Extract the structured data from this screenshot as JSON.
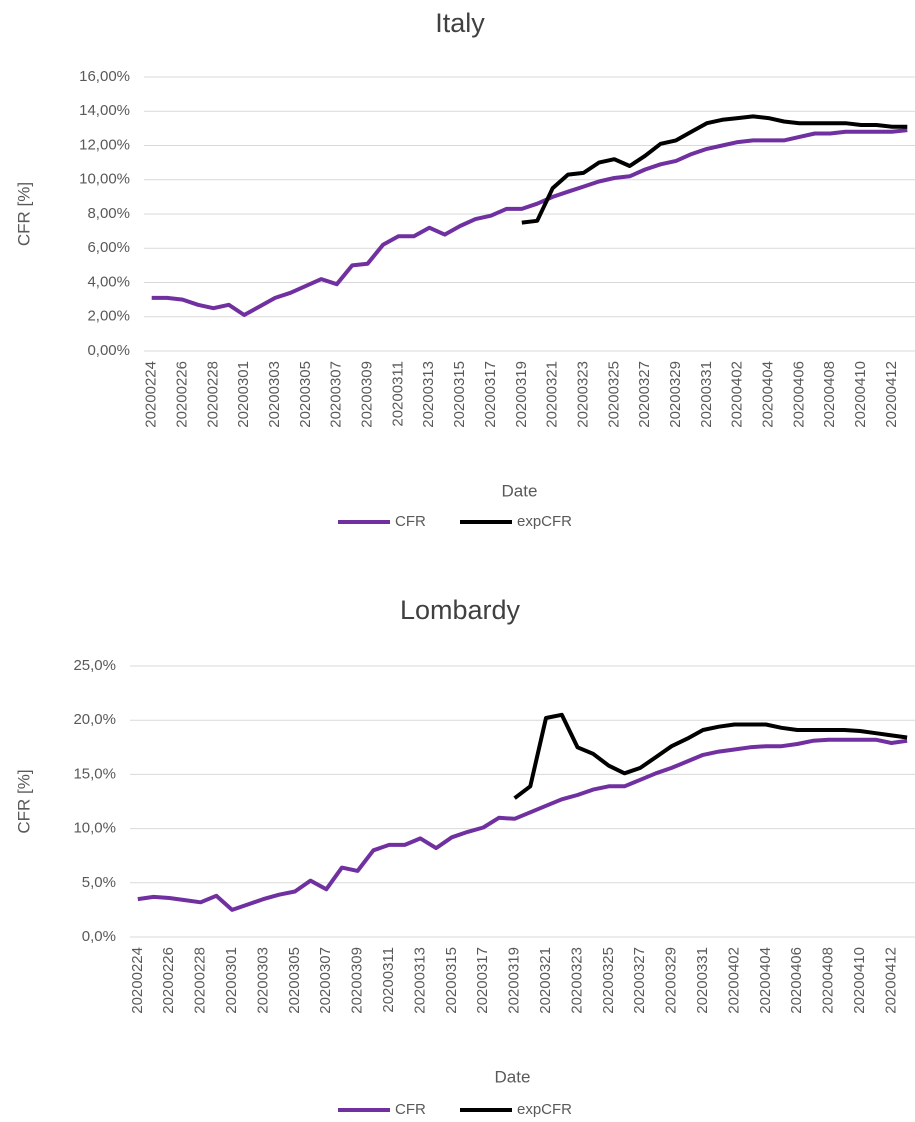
{
  "chart_data": [
    {
      "type": "line",
      "title": "Italy",
      "x_label": "Date",
      "y_label": "CFR [%]",
      "categories": [
        "20200224",
        null,
        "20200226",
        null,
        "20200228",
        null,
        "20200301",
        null,
        "20200303",
        null,
        "20200305",
        null,
        "20200307",
        null,
        "20200309",
        null,
        "20200311",
        null,
        "20200313",
        null,
        "20200315",
        null,
        "20200317",
        null,
        "20200319",
        null,
        "20200321",
        null,
        "20200323",
        null,
        "20200325",
        null,
        "20200327",
        null,
        "20200329",
        null,
        "20200331",
        null,
        "20200402",
        null,
        "20200404",
        null,
        "20200406",
        null,
        "20200408",
        null,
        "20200410",
        null,
        "20200412",
        null
      ],
      "series": [
        {
          "name": "CFR",
          "color": "#7030a0",
          "values": [
            3.1,
            3.1,
            3.0,
            2.7,
            2.5,
            2.7,
            2.1,
            2.6,
            3.1,
            3.4,
            3.8,
            4.2,
            3.9,
            5.0,
            5.1,
            6.2,
            6.7,
            6.7,
            7.2,
            6.8,
            7.3,
            7.7,
            7.9,
            8.3,
            8.3,
            8.6,
            9.0,
            9.3,
            9.6,
            9.9,
            10.1,
            10.2,
            10.6,
            10.9,
            11.1,
            11.5,
            11.8,
            12.0,
            12.2,
            12.3,
            12.3,
            12.3,
            12.5,
            12.7,
            12.7,
            12.8,
            12.8,
            12.8,
            12.8,
            12.9
          ]
        },
        {
          "name": "expCFR",
          "color": "#000000",
          "values": [
            null,
            null,
            null,
            null,
            null,
            null,
            null,
            null,
            null,
            null,
            null,
            null,
            null,
            null,
            null,
            null,
            null,
            null,
            null,
            null,
            null,
            null,
            null,
            null,
            7.5,
            7.6,
            9.5,
            10.3,
            10.4,
            11.0,
            11.2,
            10.8,
            11.4,
            12.1,
            12.3,
            12.8,
            13.3,
            13.5,
            13.6,
            13.7,
            13.6,
            13.4,
            13.3,
            13.3,
            13.3,
            13.3,
            13.2,
            13.2,
            13.1,
            13.1
          ]
        }
      ],
      "ylim": [
        0,
        16
      ],
      "yticks": [
        {
          "value": 0,
          "label": "0,00%"
        },
        {
          "value": 2,
          "label": "2,00%"
        },
        {
          "value": 4,
          "label": "4,00%"
        },
        {
          "value": 6,
          "label": "6,00%"
        },
        {
          "value": 8,
          "label": "8,00%"
        },
        {
          "value": 10,
          "label": "10,00%"
        },
        {
          "value": 12,
          "label": "12,00%"
        },
        {
          "value": 14,
          "label": "14,00%"
        },
        {
          "value": 16,
          "label": "16,00%"
        }
      ],
      "grid": true,
      "legend": "bottom"
    },
    {
      "type": "line",
      "title": "Lombardy",
      "x_label": "Date",
      "y_label": "CFR [%]",
      "categories": [
        "20200224",
        null,
        "20200226",
        null,
        "20200228",
        null,
        "20200301",
        null,
        "20200303",
        null,
        "20200305",
        null,
        "20200307",
        null,
        "20200309",
        null,
        "20200311",
        null,
        "20200313",
        null,
        "20200315",
        null,
        "20200317",
        null,
        "20200319",
        null,
        "20200321",
        null,
        "20200323",
        null,
        "20200325",
        null,
        "20200327",
        null,
        "20200329",
        null,
        "20200331",
        null,
        "20200402",
        null,
        "20200404",
        null,
        "20200406",
        null,
        "20200408",
        null,
        "20200410",
        null,
        "20200412",
        null
      ],
      "series": [
        {
          "name": "CFR",
          "color": "#7030a0",
          "values": [
            3.5,
            3.7,
            3.6,
            3.4,
            3.2,
            3.8,
            2.5,
            3.0,
            3.5,
            3.9,
            4.2,
            5.2,
            4.4,
            6.4,
            6.1,
            8.0,
            8.5,
            8.5,
            9.1,
            8.2,
            9.2,
            9.7,
            10.1,
            11.0,
            10.9,
            11.5,
            12.1,
            12.7,
            13.1,
            13.6,
            13.9,
            13.9,
            14.5,
            15.1,
            15.6,
            16.2,
            16.8,
            17.1,
            17.3,
            17.5,
            17.6,
            17.6,
            17.8,
            18.1,
            18.2,
            18.2,
            18.2,
            18.2,
            17.9,
            18.1
          ]
        },
        {
          "name": "expCFR",
          "color": "#000000",
          "values": [
            null,
            null,
            null,
            null,
            null,
            null,
            null,
            null,
            null,
            null,
            null,
            null,
            null,
            null,
            null,
            null,
            null,
            null,
            null,
            null,
            null,
            null,
            null,
            null,
            12.8,
            13.9,
            20.2,
            20.5,
            17.5,
            16.9,
            15.8,
            15.1,
            15.6,
            16.6,
            17.6,
            18.3,
            19.1,
            19.4,
            19.6,
            19.6,
            19.6,
            19.3,
            19.1,
            19.1,
            19.1,
            19.1,
            19.0,
            18.8,
            18.6,
            18.4
          ]
        }
      ],
      "ylim": [
        0,
        25
      ],
      "yticks": [
        {
          "value": 0,
          "label": "0,0%"
        },
        {
          "value": 5,
          "label": "5,0%"
        },
        {
          "value": 10,
          "label": "10,0%"
        },
        {
          "value": 15,
          "label": "15,0%"
        },
        {
          "value": 20,
          "label": "20,0%"
        },
        {
          "value": 25,
          "label": "25,0%"
        }
      ],
      "grid": true,
      "legend": "bottom"
    }
  ]
}
